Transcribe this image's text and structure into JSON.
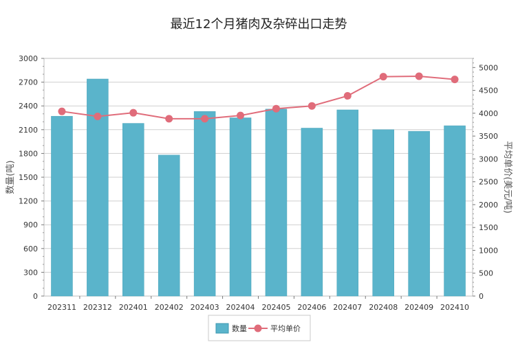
{
  "chart_data": {
    "type": "bar",
    "title": "最近12个月猪肉及杂碎出口走势",
    "categories": [
      "202311",
      "202312",
      "202401",
      "202402",
      "202403",
      "202404",
      "202405",
      "202406",
      "202407",
      "202408",
      "202409",
      "202410"
    ],
    "series": [
      {
        "name": "数量",
        "type": "bar",
        "axis": "left",
        "color": "#5ab4cb",
        "values": [
          2270,
          2740,
          2180,
          1780,
          2330,
          2250,
          2360,
          2120,
          2350,
          2100,
          2080,
          2150
        ]
      },
      {
        "name": "平均单价",
        "type": "line",
        "axis": "right",
        "color": "#e06c7a",
        "values": [
          4040,
          3930,
          4010,
          3880,
          3880,
          3950,
          4100,
          4160,
          4380,
          4800,
          4810,
          4740
        ]
      }
    ],
    "ylabel": "数量(吨)",
    "y2label": "平均单价(美元/吨)",
    "ylim": [
      0,
      3000
    ],
    "y2lim": [
      0,
      5200
    ],
    "yticks": [
      0,
      300,
      600,
      900,
      1200,
      1500,
      1800,
      2100,
      2400,
      2700,
      3000
    ],
    "y2ticks": [
      0,
      500,
      1000,
      1500,
      2000,
      2500,
      3000,
      3500,
      4000,
      4500,
      5000
    ],
    "grid": true,
    "legend_position": "bottom-center"
  }
}
